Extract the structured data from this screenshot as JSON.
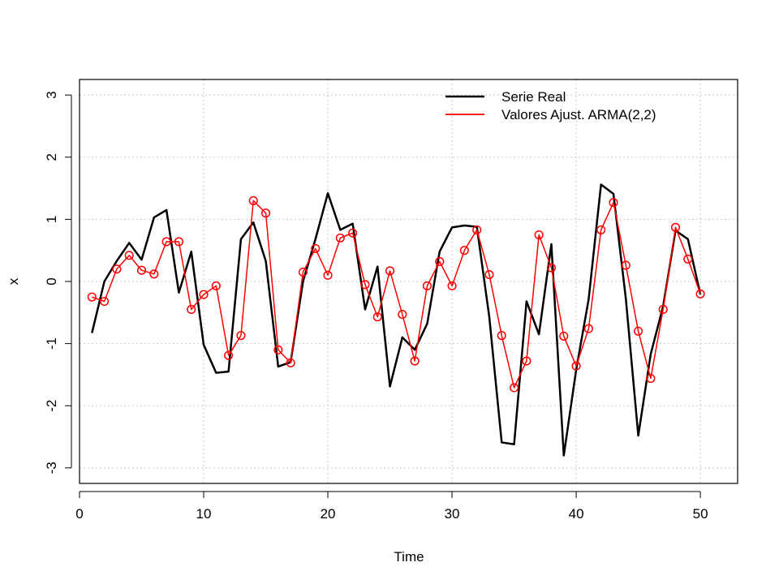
{
  "chart_data": {
    "type": "line",
    "title": "",
    "xlabel": "Time",
    "ylabel": "x",
    "xlim": [
      0,
      53
    ],
    "ylim": [
      -3.25,
      3.25
    ],
    "x_ticks": [
      "0",
      "10",
      "20",
      "30",
      "40",
      "50"
    ],
    "y_ticks": [
      "-3",
      "-2",
      "-1",
      "0",
      "1",
      "2",
      "3"
    ],
    "x_tick_values": [
      0,
      10,
      20,
      30,
      40,
      50
    ],
    "y_tick_values": [
      -3,
      -2,
      -1,
      0,
      1,
      2,
      3
    ],
    "grid": true,
    "legend_position": "top-right",
    "x": [
      1,
      2,
      3,
      4,
      5,
      6,
      7,
      8,
      9,
      10,
      11,
      12,
      13,
      14,
      15,
      16,
      17,
      18,
      19,
      20,
      21,
      22,
      23,
      24,
      25,
      26,
      27,
      28,
      29,
      30,
      31,
      32,
      33,
      34,
      35,
      36,
      37,
      38,
      39,
      40,
      41,
      42,
      43,
      44,
      45,
      46,
      47,
      48,
      49,
      50
    ],
    "series": [
      {
        "name": "Serie Real",
        "color": "#000000",
        "style": "line",
        "values": [
          -0.83,
          0.0,
          0.33,
          0.62,
          0.35,
          1.03,
          1.15,
          -0.18,
          0.48,
          -1.02,
          -1.47,
          -1.45,
          0.68,
          0.95,
          0.33,
          -1.37,
          -1.3,
          0.0,
          0.68,
          1.42,
          0.83,
          0.93,
          -0.45,
          0.24,
          -1.69,
          -0.9,
          -1.1,
          -0.68,
          0.48,
          0.87,
          0.9,
          0.88,
          -0.57,
          -2.59,
          -2.62,
          -0.32,
          -0.85,
          0.6,
          -2.8,
          -1.42,
          -0.29,
          1.56,
          1.41,
          -0.28,
          -2.48,
          -1.17,
          -0.4,
          0.82,
          0.68,
          -0.21
        ]
      },
      {
        "name": "Valores Ajust. ARMA(2,2)",
        "color": "#ff0000",
        "style": "line+circles",
        "values": [
          -0.25,
          -0.32,
          0.2,
          0.42,
          0.18,
          0.12,
          0.64,
          0.64,
          -0.45,
          -0.21,
          -0.07,
          -1.19,
          -0.87,
          1.3,
          1.1,
          -1.1,
          -1.31,
          0.15,
          0.53,
          0.1,
          0.7,
          0.78,
          -0.05,
          -0.57,
          0.17,
          -0.53,
          -1.28,
          -0.07,
          0.32,
          -0.07,
          0.5,
          0.83,
          0.11,
          -0.87,
          -1.71,
          -1.28,
          0.75,
          0.22,
          -0.88,
          -1.36,
          -0.76,
          0.83,
          1.27,
          0.26,
          -0.8,
          -1.56,
          -0.45,
          0.87,
          0.36,
          -0.2
        ]
      }
    ]
  }
}
